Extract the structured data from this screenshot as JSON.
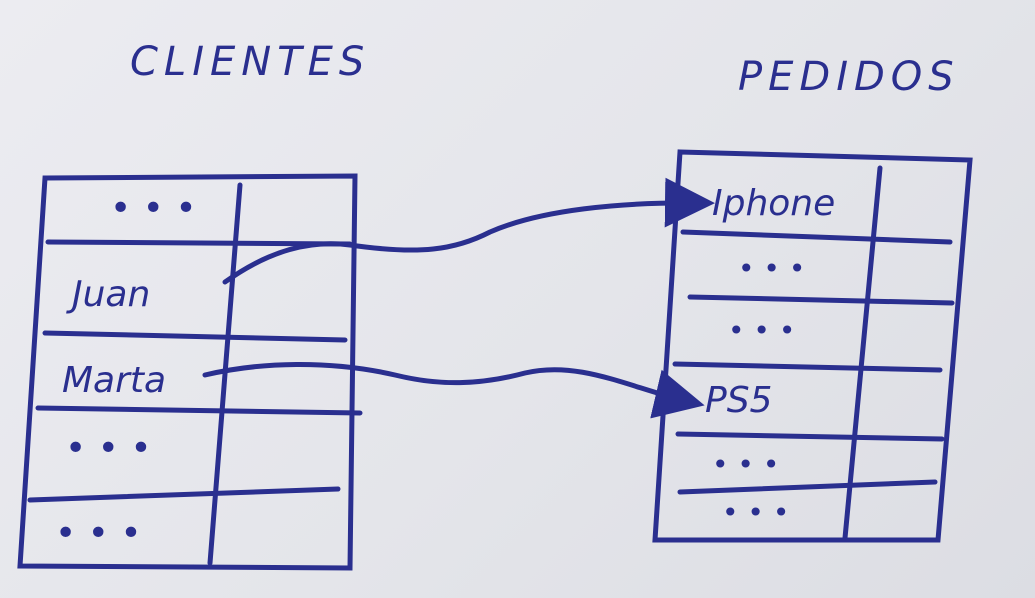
{
  "diagram": {
    "ink_color": "#2a2f8f",
    "paper_color": "#e8e9ee",
    "left_table": {
      "title": "CLIENTES",
      "rows": [
        "• • •",
        "Juan",
        "Marta",
        "• • •",
        "• • •"
      ]
    },
    "right_table": {
      "title": "PEDIDOS",
      "rows": [
        "Iphone",
        "• • •",
        "• • •",
        "PS5",
        "• • •",
        "• • •"
      ]
    },
    "links": [
      {
        "from": "Juan",
        "to": "Iphone"
      },
      {
        "from": "Marta",
        "to": "PS5"
      }
    ]
  }
}
